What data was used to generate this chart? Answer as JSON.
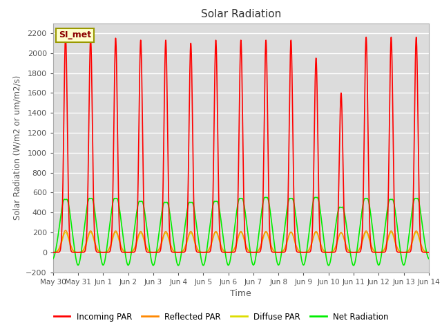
{
  "title": "Solar Radiation",
  "ylabel": "Solar Radiation (W/m2 or um/m2/s)",
  "xlabel": "Time",
  "ylim": [
    -200,
    2300
  ],
  "yticks": [
    -200,
    0,
    200,
    400,
    600,
    800,
    1000,
    1200,
    1400,
    1600,
    1800,
    2000,
    2200
  ],
  "bg_color": "#dcdcdc",
  "legend_label": "SI_met",
  "num_days": 15,
  "series_colors": {
    "incoming": "#ff0000",
    "reflected": "#ff8800",
    "diffuse": "#dddd00",
    "net": "#00ee00"
  },
  "xtick_labels": [
    "May 30",
    "May 31",
    "Jun 1",
    "Jun 2",
    "Jun 3",
    "Jun 4",
    "Jun 5",
    "Jun 6",
    "Jun 7",
    "Jun 8",
    "Jun 9",
    "Jun 10",
    "Jun 11",
    "Jun 12",
    "Jun 13",
    "Jun 14"
  ],
  "xtick_positions": [
    0,
    1,
    2,
    3,
    4,
    5,
    6,
    7,
    8,
    9,
    10,
    11,
    12,
    13,
    14,
    15
  ],
  "incoming_peaks": [
    2170,
    2150,
    2150,
    2130,
    2130,
    2100,
    2130,
    2130,
    2130,
    2130,
    1950,
    1600,
    2160,
    2160,
    2160
  ],
  "net_peaks": [
    580,
    590,
    590,
    560,
    550,
    550,
    560,
    590,
    600,
    590,
    600,
    500,
    590,
    580,
    590
  ],
  "reflected_peaks": [
    220,
    215,
    215,
    210,
    210,
    210,
    210,
    210,
    210,
    205,
    210,
    200,
    215,
    215,
    215
  ],
  "diffuse_peaks": [
    200,
    200,
    200,
    195,
    195,
    195,
    200,
    200,
    200,
    200,
    200,
    195,
    200,
    200,
    200
  ]
}
